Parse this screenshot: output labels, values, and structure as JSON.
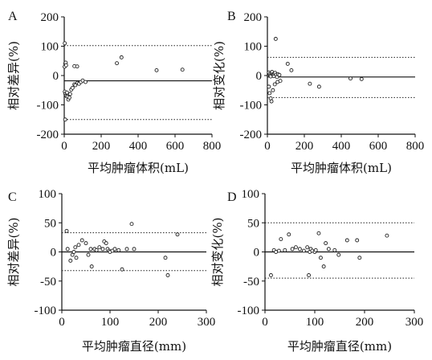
{
  "chart_data": [
    {
      "type": "scatter",
      "panel": "A",
      "xlabel": "平均肿瘤体积(mL)",
      "ylabel": "相对差异(%)",
      "xlim": [
        0,
        800
      ],
      "ylim": [
        -200,
        200
      ],
      "xticks": [
        0,
        200,
        400,
        600,
        800
      ],
      "yticks": [
        -200,
        -100,
        0,
        100,
        200
      ],
      "mean_line": -18,
      "limit_lines": [
        102,
        -150
      ],
      "points": [
        [
          3,
          110
        ],
        [
          5,
          40
        ],
        [
          2,
          30
        ],
        [
          8,
          44
        ],
        [
          10,
          35
        ],
        [
          3,
          -55
        ],
        [
          6,
          -62
        ],
        [
          8,
          -68
        ],
        [
          12,
          -70
        ],
        [
          15,
          -58
        ],
        [
          18,
          -72
        ],
        [
          22,
          -82
        ],
        [
          28,
          -75
        ],
        [
          32,
          -63
        ],
        [
          38,
          -48
        ],
        [
          45,
          -42
        ],
        [
          55,
          -30
        ],
        [
          60,
          -33
        ],
        [
          72,
          -25
        ],
        [
          80,
          -28
        ],
        [
          90,
          -22
        ],
        [
          100,
          -17
        ],
        [
          115,
          -22
        ],
        [
          55,
          32
        ],
        [
          70,
          31
        ],
        [
          5,
          -150
        ],
        [
          285,
          42
        ],
        [
          310,
          62
        ],
        [
          500,
          18
        ],
        [
          640,
          20
        ]
      ]
    },
    {
      "type": "scatter",
      "panel": "B",
      "xlabel": "平均肿瘤体积(mL)",
      "ylabel": "相对变化(%)",
      "xlim": [
        0,
        800
      ],
      "ylim": [
        -200,
        200
      ],
      "xticks": [
        0,
        200,
        400,
        600,
        800
      ],
      "yticks": [
        -200,
        -100,
        0,
        100,
        200
      ],
      "mean_line": -5,
      "limit_lines": [
        62,
        -75
      ],
      "points": [
        [
          45,
          125
        ],
        [
          8,
          10
        ],
        [
          12,
          5
        ],
        [
          15,
          0
        ],
        [
          18,
          -3
        ],
        [
          22,
          8
        ],
        [
          25,
          12
        ],
        [
          28,
          4
        ],
        [
          32,
          2
        ],
        [
          35,
          -2
        ],
        [
          38,
          6
        ],
        [
          42,
          9
        ],
        [
          48,
          3
        ],
        [
          52,
          -5
        ],
        [
          58,
          4
        ],
        [
          65,
          2
        ],
        [
          8,
          -38
        ],
        [
          12,
          -60
        ],
        [
          18,
          -78
        ],
        [
          22,
          -88
        ],
        [
          30,
          -50
        ],
        [
          40,
          -30
        ],
        [
          55,
          -22
        ],
        [
          70,
          -18
        ],
        [
          110,
          40
        ],
        [
          130,
          18
        ],
        [
          230,
          -28
        ],
        [
          280,
          -38
        ],
        [
          450,
          -10
        ],
        [
          510,
          -12
        ]
      ]
    },
    {
      "type": "scatter",
      "panel": "C",
      "xlabel": "平均肿瘤直径(mm)",
      "ylabel": "相对差异(%)",
      "xlim": [
        0,
        300
      ],
      "ylim": [
        -100,
        100
      ],
      "xticks": [
        0,
        100,
        200,
        300
      ],
      "yticks": [
        -100,
        -50,
        0,
        50,
        100
      ],
      "mean_line": 0,
      "limit_lines": [
        33,
        -32
      ],
      "points": [
        [
          10,
          36
        ],
        [
          12,
          5
        ],
        [
          18,
          -15
        ],
        [
          22,
          -5
        ],
        [
          25,
          0
        ],
        [
          28,
          8
        ],
        [
          30,
          -10
        ],
        [
          35,
          12
        ],
        [
          42,
          20
        ],
        [
          50,
          15
        ],
        [
          55,
          -5
        ],
        [
          60,
          5
        ],
        [
          62,
          -25
        ],
        [
          68,
          5
        ],
        [
          72,
          3
        ],
        [
          78,
          8
        ],
        [
          85,
          5
        ],
        [
          88,
          18
        ],
        [
          92,
          15
        ],
        [
          95,
          5
        ],
        [
          98,
          2
        ],
        [
          100,
          0
        ],
        [
          105,
          2
        ],
        [
          110,
          5
        ],
        [
          118,
          3
        ],
        [
          125,
          -30
        ],
        [
          135,
          5
        ],
        [
          145,
          48
        ],
        [
          150,
          5
        ],
        [
          215,
          -10
        ],
        [
          220,
          -40
        ],
        [
          240,
          30
        ]
      ]
    },
    {
      "type": "scatter",
      "panel": "D",
      "xlabel": "平均肿瘤直径(mm)",
      "ylabel": "相对变化(%)",
      "xlim": [
        0,
        300
      ],
      "ylim": [
        -100,
        100
      ],
      "xticks": [
        0,
        100,
        200,
        300
      ],
      "yticks": [
        -100,
        -50,
        0,
        50,
        100
      ],
      "mean_line": 0,
      "limit_lines": [
        50,
        -45
      ],
      "points": [
        [
          12,
          -40
        ],
        [
          18,
          3
        ],
        [
          22,
          0
        ],
        [
          28,
          2
        ],
        [
          32,
          22
        ],
        [
          40,
          3
        ],
        [
          48,
          30
        ],
        [
          55,
          5
        ],
        [
          62,
          8
        ],
        [
          70,
          5
        ],
        [
          78,
          2
        ],
        [
          85,
          8
        ],
        [
          88,
          -40
        ],
        [
          90,
          0
        ],
        [
          92,
          5
        ],
        [
          95,
          2
        ],
        [
          100,
          0
        ],
        [
          102,
          3
        ],
        [
          108,
          32
        ],
        [
          112,
          -10
        ],
        [
          118,
          -25
        ],
        [
          122,
          15
        ],
        [
          128,
          5
        ],
        [
          140,
          3
        ],
        [
          148,
          -5
        ],
        [
          165,
          20
        ],
        [
          185,
          20
        ],
        [
          190,
          -10
        ],
        [
          245,
          28
        ]
      ]
    }
  ]
}
